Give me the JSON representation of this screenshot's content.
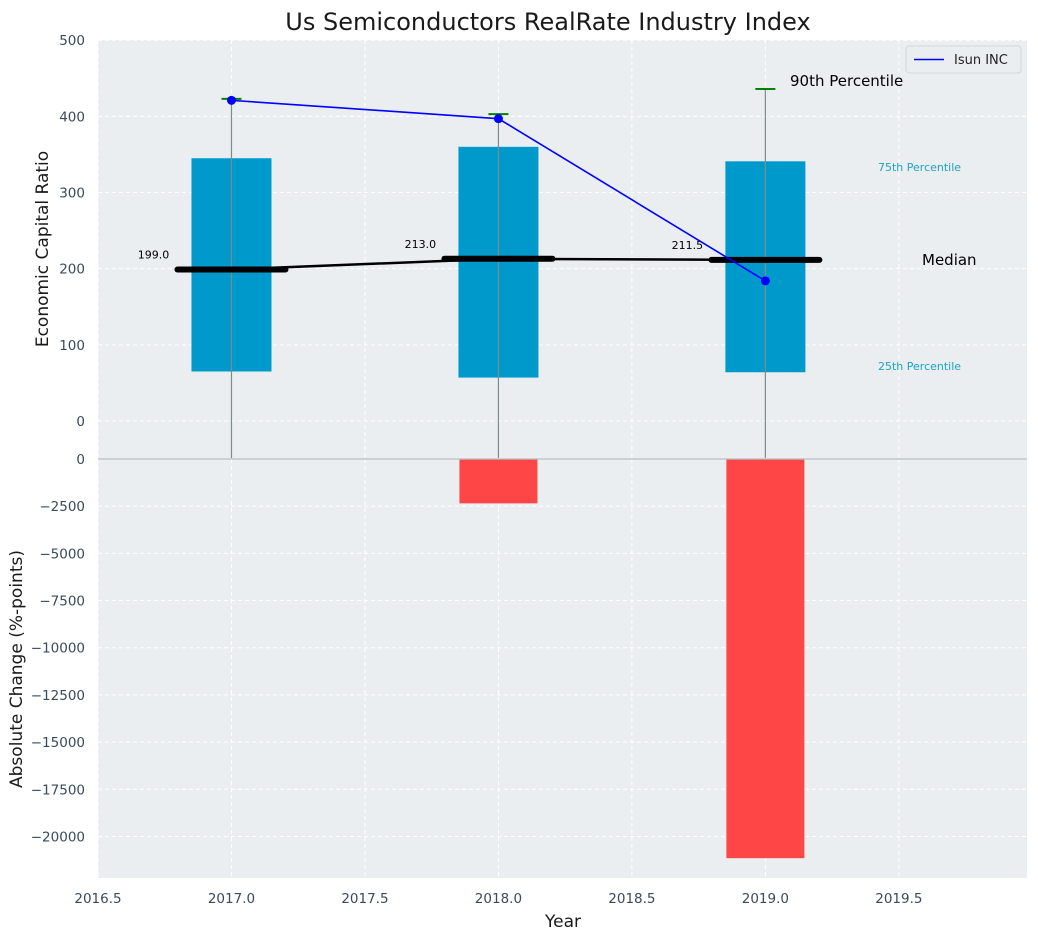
{
  "chart_data": [
    {
      "type": "bar",
      "panel": "top",
      "title": "Us Semiconductors RealRate Industry Index",
      "xlabel": "",
      "ylabel": "Economic Capital Ratio",
      "ylim": [
        -50,
        500
      ],
      "yticks": [
        0,
        100,
        200,
        300,
        400,
        500
      ],
      "categories": [
        2017,
        2018,
        2019
      ],
      "series": [
        {
          "name": "25th-75th percentile band",
          "low": [
            65,
            57,
            64
          ],
          "high": [
            345,
            360,
            341
          ]
        },
        {
          "name": "Median",
          "values": [
            199.0,
            213.0,
            211.5
          ]
        },
        {
          "name": "90th Percentile",
          "values": [
            423,
            403,
            436
          ]
        },
        {
          "name": "Isun INC",
          "values": [
            421,
            397,
            184
          ]
        }
      ],
      "median_labels": [
        "199.0",
        "213.0",
        "211.5"
      ],
      "annotations": {
        "p90": "90th Percentile",
        "p75": "75th Percentile",
        "median": "Median",
        "p25": "25th Percentile"
      },
      "legend": {
        "position": "top-right",
        "entries": [
          "Isun INC"
        ]
      },
      "grid": true
    },
    {
      "type": "bar",
      "panel": "bottom",
      "xlabel": "Year",
      "ylabel": "Absolute Change (%-points)",
      "ylim": [
        -22200,
        0
      ],
      "yticks": [
        0,
        -2500,
        -5000,
        -7500,
        -10000,
        -12500,
        -15000,
        -17500,
        -20000
      ],
      "x": [
        2017,
        2018,
        2019
      ],
      "values": [
        0,
        -2350,
        -21150
      ],
      "xlim": [
        2016.5,
        2019.98
      ],
      "xticks": [
        "2016.5",
        "2017.0",
        "2017.5",
        "2018.0",
        "2018.5",
        "2019.0",
        "2019.5"
      ],
      "grid": true
    }
  ],
  "colors": {
    "panel_bg": "#eaeef0",
    "band": "#0099cc",
    "isun_line": "#0000ff",
    "median": "#000000",
    "p90_tick": "#008000",
    "change_bar": "#ff3c3c",
    "band_label": "#1aa3c7",
    "grid": "#ffffff",
    "axis_text": "#3b4a5a"
  }
}
